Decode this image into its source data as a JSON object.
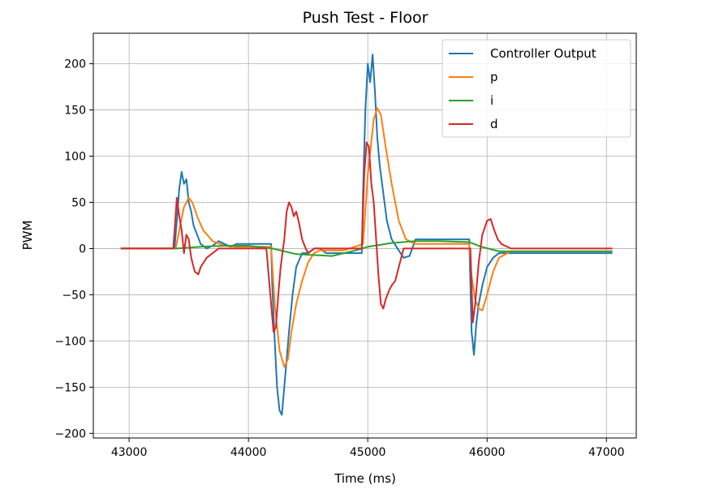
{
  "chart_data": {
    "type": "line",
    "title": "Push Test - Floor",
    "xlabel": "Time (ms)",
    "ylabel": "PWM",
    "xlim": [
      42700,
      47250
    ],
    "ylim": [
      -205,
      233
    ],
    "xticks": [
      43000,
      44000,
      45000,
      46000,
      47000
    ],
    "xtick_labels": [
      "43000",
      "44000",
      "45000",
      "46000",
      "47000"
    ],
    "yticks": [
      -200,
      -150,
      -100,
      -50,
      0,
      50,
      100,
      150,
      200
    ],
    "ytick_labels": [
      "−200",
      "−150",
      "−100",
      "−50",
      "0",
      "50",
      "100",
      "150",
      "200"
    ],
    "grid": true,
    "legend_position": "top-right",
    "series": [
      {
        "name": "Controller Output",
        "color": "#1f77b4",
        "x": [
          42930,
          43000,
          43100,
          43200,
          43300,
          43380,
          43400,
          43420,
          43440,
          43460,
          43480,
          43500,
          43520,
          43540,
          43570,
          43600,
          43650,
          43700,
          43750,
          43800,
          43850,
          43900,
          43950,
          44000,
          44100,
          44190,
          44200,
          44220,
          44240,
          44260,
          44280,
          44300,
          44320,
          44340,
          44370,
          44400,
          44450,
          44500,
          44550,
          44600,
          44650,
          44700,
          44750,
          44800,
          44850,
          44900,
          44950,
          44960,
          44980,
          45000,
          45020,
          45040,
          45060,
          45080,
          45100,
          45130,
          45160,
          45200,
          45250,
          45300,
          45350,
          45400,
          45450,
          45500,
          45600,
          45700,
          45800,
          45850,
          45870,
          45890,
          45910,
          45930,
          45960,
          46000,
          46050,
          46100,
          46150,
          46200,
          46300,
          46400,
          46500,
          46600,
          46700,
          46800,
          46900,
          47050
        ],
        "y": [
          0,
          0,
          0,
          0,
          0,
          0,
          30,
          65,
          83,
          70,
          75,
          50,
          40,
          25,
          15,
          5,
          0,
          3,
          8,
          5,
          2,
          5,
          5,
          5,
          5,
          5,
          -40,
          -100,
          -150,
          -175,
          -180,
          -150,
          -120,
          -90,
          -50,
          -20,
          -5,
          -5,
          0,
          0,
          -5,
          -5,
          -5,
          -5,
          -5,
          -5,
          -5,
          60,
          150,
          200,
          180,
          210,
          170,
          120,
          90,
          60,
          30,
          10,
          0,
          -10,
          -8,
          10,
          10,
          10,
          10,
          10,
          10,
          10,
          -90,
          -115,
          -80,
          -60,
          -40,
          -20,
          -10,
          -5,
          -5,
          -5,
          -5,
          -5,
          -5,
          -5,
          -5,
          -5,
          -5,
          -5
        ]
      },
      {
        "name": "p",
        "color": "#ff7f0e",
        "x": [
          42930,
          43300,
          43390,
          43420,
          43460,
          43500,
          43530,
          43570,
          43620,
          43700,
          43800,
          43900,
          44000,
          44190,
          44220,
          44260,
          44300,
          44330,
          44360,
          44400,
          44450,
          44500,
          44550,
          44600,
          44800,
          44960,
          45000,
          45050,
          45080,
          45110,
          45150,
          45200,
          45260,
          45320,
          45400,
          45600,
          45850,
          45870,
          45900,
          45930,
          45960,
          46000,
          46050,
          46100,
          46200,
          46400,
          46700,
          47050
        ],
        "y": [
          0,
          0,
          0,
          20,
          45,
          55,
          50,
          35,
          20,
          8,
          3,
          2,
          2,
          2,
          -60,
          -110,
          -128,
          -120,
          -90,
          -60,
          -35,
          -15,
          -5,
          -2,
          -2,
          5,
          80,
          140,
          152,
          145,
          110,
          70,
          30,
          10,
          5,
          5,
          5,
          -30,
          -55,
          -65,
          -67,
          -50,
          -25,
          -10,
          -3,
          -3,
          -3,
          -3
        ]
      },
      {
        "name": "i",
        "color": "#2ca02c",
        "x": [
          42930,
          43400,
          43600,
          43800,
          44000,
          44200,
          44400,
          44700,
          44900,
          45000,
          45200,
          45400,
          45600,
          45850,
          45950,
          46100,
          46500,
          47050
        ],
        "y": [
          0,
          0,
          2,
          3,
          3,
          0,
          -6,
          -8,
          -2,
          2,
          6,
          8,
          8,
          7,
          2,
          -3,
          -3,
          -3
        ],
        "y_ref_note": ""
      },
      {
        "name": "d",
        "color": "#d62728",
        "x": [
          42930,
          43370,
          43400,
          43420,
          43440,
          43460,
          43480,
          43500,
          43520,
          43550,
          43580,
          43600,
          43650,
          43700,
          43750,
          43800,
          43850,
          43900,
          44000,
          44100,
          44150,
          44190,
          44210,
          44230,
          44250,
          44270,
          44300,
          44320,
          44340,
          44360,
          44380,
          44400,
          44420,
          44450,
          44480,
          44500,
          44550,
          44600,
          44700,
          44800,
          44900,
          44950,
          44970,
          44990,
          45010,
          45030,
          45050,
          45070,
          45090,
          45110,
          45130,
          45150,
          45180,
          45200,
          45230,
          45260,
          45300,
          45330,
          45360,
          45400,
          45450,
          45500,
          45600,
          45700,
          45800,
          45860,
          45880,
          45900,
          45930,
          45960,
          46000,
          46030,
          46060,
          46090,
          46120,
          46150,
          46200,
          46300,
          46400,
          46600,
          47050
        ],
        "y": [
          0,
          0,
          55,
          35,
          20,
          -5,
          15,
          10,
          -10,
          -25,
          -28,
          -20,
          -10,
          -5,
          0,
          0,
          0,
          0,
          0,
          0,
          0,
          -60,
          -90,
          -85,
          -50,
          -20,
          10,
          40,
          50,
          45,
          35,
          40,
          30,
          10,
          0,
          -5,
          0,
          0,
          0,
          0,
          0,
          0,
          80,
          115,
          110,
          70,
          50,
          10,
          -30,
          -60,
          -65,
          -55,
          -45,
          -40,
          -35,
          -20,
          0,
          0,
          0,
          0,
          0,
          0,
          0,
          0,
          0,
          0,
          -80,
          -60,
          -15,
          15,
          30,
          32,
          20,
          10,
          5,
          3,
          0,
          0,
          0,
          0,
          0
        ]
      }
    ]
  }
}
